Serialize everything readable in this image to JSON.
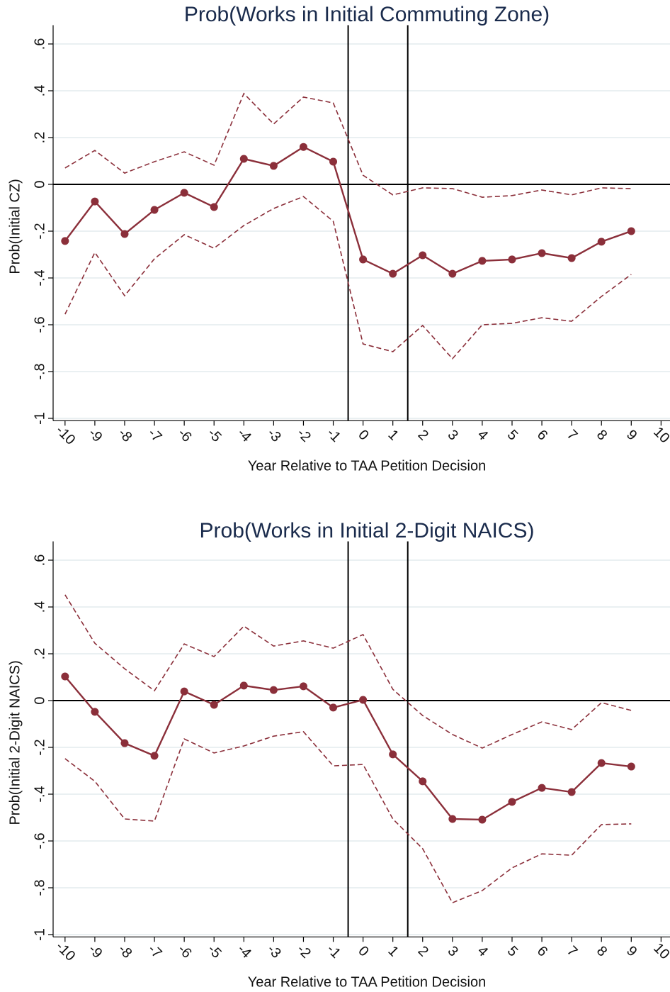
{
  "chart_data": [
    {
      "type": "line",
      "title": "Prob(Works in Initial Commuting Zone)",
      "x_label": "Year Relative to TAA Petition Decision",
      "y_label": "Prob(Initial CZ)",
      "x": [
        -10,
        -9,
        -8,
        -7,
        -6,
        -5,
        -4,
        -3,
        -2,
        -1,
        0,
        1,
        2,
        3,
        4,
        5,
        6,
        7,
        8,
        9
      ],
      "series": [
        {
          "color": "#8b2f3a",
          "dashed": false,
          "markers": true,
          "values": [
            -0.242,
            -0.073,
            -0.212,
            -0.109,
            -0.036,
            -0.097,
            0.109,
            0.079,
            0.16,
            0.097,
            -0.321,
            -0.382,
            -0.303,
            -0.382,
            -0.327,
            -0.321,
            -0.294,
            -0.315,
            -0.245,
            -0.2
          ]
        },
        {
          "color": "#8b2f3a",
          "dashed": true,
          "markers": false,
          "values": [
            0.07,
            0.145,
            0.048,
            0.097,
            0.139,
            0.082,
            0.388,
            0.258,
            0.373,
            0.348,
            0.039,
            -0.045,
            -0.015,
            -0.018,
            -0.055,
            -0.048,
            -0.024,
            -0.045,
            -0.015,
            -0.018
          ]
        },
        {
          "color": "#8b2f3a",
          "dashed": true,
          "markers": false,
          "values": [
            -0.555,
            -0.291,
            -0.476,
            -0.318,
            -0.215,
            -0.273,
            -0.176,
            -0.103,
            -0.052,
            -0.158,
            -0.682,
            -0.715,
            -0.603,
            -0.745,
            -0.6,
            -0.594,
            -0.57,
            -0.585,
            -0.479,
            -0.385
          ]
        }
      ],
      "xlim": [
        -10.4,
        10.3
      ],
      "ylim": [
        -1.01,
        0.65
      ],
      "xticks": [
        -10,
        -9,
        -8,
        -7,
        -6,
        -5,
        -4,
        -3,
        -2,
        -1,
        0,
        1,
        2,
        3,
        4,
        5,
        6,
        7,
        8,
        9,
        10
      ],
      "yticks": [
        -1,
        {
          "value": -0.8,
          "label": "-.8"
        },
        {
          "value": -0.6,
          "label": "-.6"
        },
        {
          "value": -0.4,
          "label": "-.4"
        },
        {
          "value": -0.2,
          "label": "-.2"
        },
        0,
        {
          "value": 0.2,
          "label": ".2"
        },
        {
          "value": 0.4,
          "label": ".4"
        },
        {
          "value": 0.6,
          "label": ".6"
        }
      ],
      "grid": true,
      "xlines": [
        -0.5,
        1.5
      ],
      "ylines": [
        0
      ]
    },
    {
      "type": "line",
      "title": "Prob(Works in Initial 2-Digit NAICS)",
      "x_label": "Year Relative to TAA Petition Decision",
      "y_label": "Prob(Initial 2-Digit NAICS)",
      "x": [
        -10,
        -9,
        -8,
        -7,
        -6,
        -5,
        -4,
        -3,
        -2,
        -1,
        0,
        1,
        2,
        3,
        4,
        5,
        6,
        7,
        8,
        9
      ],
      "series": [
        {
          "color": "#8b2f3a",
          "dashed": false,
          "markers": true,
          "values": [
            0.103,
            -0.048,
            -0.182,
            -0.236,
            0.039,
            -0.018,
            0.064,
            0.045,
            0.061,
            -0.03,
            0.003,
            -0.23,
            -0.345,
            -0.506,
            -0.509,
            -0.433,
            -0.373,
            -0.391,
            -0.267,
            -0.282
          ]
        },
        {
          "color": "#8b2f3a",
          "dashed": true,
          "markers": false,
          "values": [
            0.452,
            0.245,
            0.136,
            0.042,
            0.242,
            0.188,
            0.318,
            0.233,
            0.255,
            0.224,
            0.282,
            0.048,
            -0.064,
            -0.145,
            -0.203,
            -0.145,
            -0.091,
            -0.124,
            -0.009,
            -0.042
          ]
        },
        {
          "color": "#8b2f3a",
          "dashed": true,
          "markers": false,
          "values": [
            -0.248,
            -0.345,
            -0.506,
            -0.515,
            -0.164,
            -0.224,
            -0.194,
            -0.152,
            -0.133,
            -0.279,
            -0.273,
            -0.506,
            -0.633,
            -0.864,
            -0.812,
            -0.715,
            -0.655,
            -0.661,
            -0.53,
            -0.527
          ]
        }
      ],
      "xlim": [
        -10.4,
        10.3
      ],
      "ylim": [
        -1.01,
        0.65
      ],
      "xticks": [
        -10,
        -9,
        -8,
        -7,
        -6,
        -5,
        -4,
        -3,
        -2,
        -1,
        0,
        1,
        2,
        3,
        4,
        5,
        6,
        7,
        8,
        9,
        10
      ],
      "yticks": [
        -1,
        {
          "value": -0.8,
          "label": "-.8"
        },
        {
          "value": -0.6,
          "label": "-.6"
        },
        {
          "value": -0.4,
          "label": "-.4"
        },
        {
          "value": -0.2,
          "label": "-.2"
        },
        0,
        {
          "value": 0.2,
          "label": ".2"
        },
        {
          "value": 0.4,
          "label": ".4"
        },
        {
          "value": 0.6,
          "label": ".6"
        }
      ],
      "grid": true,
      "xlines": [
        -0.5,
        1.5
      ],
      "ylines": [
        0
      ]
    }
  ]
}
